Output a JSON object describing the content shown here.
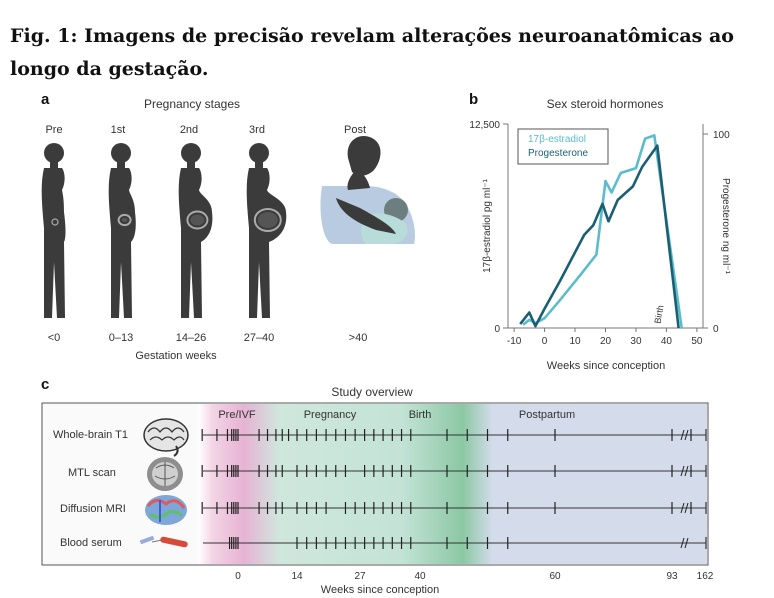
{
  "figure": {
    "title": "Fig. 1: Imagens de precisão revelam alterações neuroanatômicas ao longo da gestação."
  },
  "panel_a": {
    "label": "a",
    "title": "Pregnancy stages",
    "stages": [
      "Pre",
      "1st",
      "2nd",
      "3rd",
      "Post"
    ],
    "weeks": [
      "<0",
      "0–13",
      "14–26",
      "27–40",
      ">40"
    ],
    "xlabel": "Gestation weeks"
  },
  "panel_b": {
    "label": "b",
    "title": "Sex steroid hormones",
    "legend": [
      "17β-estradiol",
      "Progesterone"
    ],
    "birth_label": "Birth",
    "y_left_ticks": [
      "12,500",
      "0"
    ],
    "y_right_ticks": [
      "100",
      "0"
    ],
    "x_ticks": [
      "-10",
      "0",
      "10",
      "20",
      "30",
      "40",
      "50"
    ],
    "ylabel_left": "17β-estradiol pg ml⁻¹",
    "ylabel_right": "Progesterone ng ml⁻¹",
    "xlabel": "Weeks since conception"
  },
  "panel_c": {
    "label": "c",
    "title": "Study overview",
    "phases": [
      "Pre/IVF",
      "Pregnancy",
      "Birth",
      "Postpartum"
    ],
    "rows": [
      "Whole-brain T1",
      "MTL scan",
      "Diffusion MRI",
      "Blood serum"
    ],
    "x_ticks": [
      "0",
      "14",
      "27",
      "40",
      "60",
      "93",
      "162"
    ],
    "xlabel": "Weeks since conception"
  },
  "chart_data": {
    "type": "line",
    "title": "Sex steroid hormones",
    "xlabel": "Weeks since conception",
    "ylabel": "17β-estradiol pg ml⁻¹",
    "ylabel_right": "Progesterone ng ml⁻¹",
    "xlim": [
      -12,
      52
    ],
    "ylim": [
      0,
      12500
    ],
    "ylim_right": [
      0,
      100
    ],
    "legend_position": "top-left",
    "colors": {
      "estradiol": "#5bbcca",
      "progesterone": "#1b5f75"
    },
    "series": [
      {
        "name": "17β-estradiol",
        "axis": "left",
        "x": [
          -7,
          -5,
          -3,
          0,
          5,
          12,
          17,
          20,
          22,
          25,
          30,
          33,
          36,
          45
        ],
        "y": [
          200,
          500,
          300,
          600,
          1700,
          3300,
          4500,
          9000,
          8300,
          9500,
          9800,
          11600,
          11800,
          0
        ]
      },
      {
        "name": "Progesterone",
        "axis": "right",
        "x": [
          -8,
          -5,
          -3,
          0,
          5,
          13,
          16,
          19,
          21,
          24,
          29,
          32,
          37,
          44
        ],
        "y": [
          2,
          8,
          1,
          10,
          24,
          48,
          53,
          64,
          55,
          66,
          73,
          83,
          94,
          0
        ]
      }
    ]
  },
  "colors": {
    "pre_band": "#e8b7d6",
    "pregnancy_band": "#c5e4da",
    "birth_band": "#8fc9a5",
    "postpartum_band": "#d4dcec",
    "silhouette": "#3b3b3b"
  }
}
